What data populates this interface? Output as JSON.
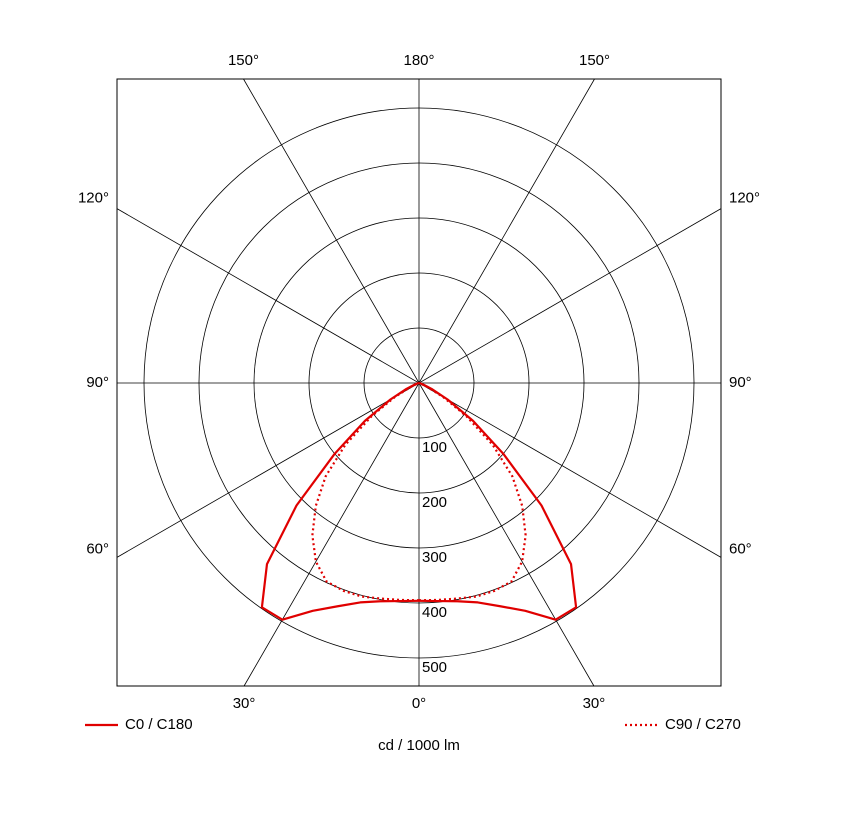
{
  "chart_data": {
    "type": "polar",
    "axis_label": "cd / 1000 lm",
    "angles": [
      0,
      5,
      10,
      15,
      20,
      25,
      30,
      35,
      40,
      45,
      50,
      55,
      60,
      65,
      70,
      75,
      80,
      85,
      90
    ],
    "series": [
      {
        "name": "C0 / C180",
        "color": "#e00000",
        "style": "solid",
        "values": [
          396,
          398,
          403,
          413,
          432,
          457,
          497,
          498,
          430,
          315,
          200,
          120,
          60,
          25,
          8,
          2,
          0,
          0,
          0
        ]
      },
      {
        "name": "C90 / C270",
        "color": "#e00000",
        "style": "dotted",
        "values": [
          395,
          396,
          398,
          402,
          402,
          398,
          375,
          338,
          292,
          240,
          175,
          105,
          50,
          15,
          3,
          0,
          0,
          0,
          0
        ]
      }
    ],
    "rlim": [
      0,
      500
    ],
    "rticks": [
      100,
      200,
      300,
      400,
      500
    ],
    "angle_ticks": [
      {
        "value": 0,
        "label": "0°"
      },
      {
        "value": 30,
        "label": "30°"
      },
      {
        "value": 60,
        "label": "60°"
      },
      {
        "value": 90,
        "label": "90°"
      },
      {
        "value": 120,
        "label": "120°"
      },
      {
        "value": 150,
        "label": "150°"
      },
      {
        "value": 180,
        "label": "180°"
      }
    ],
    "grid": true,
    "legend": "bottom"
  }
}
